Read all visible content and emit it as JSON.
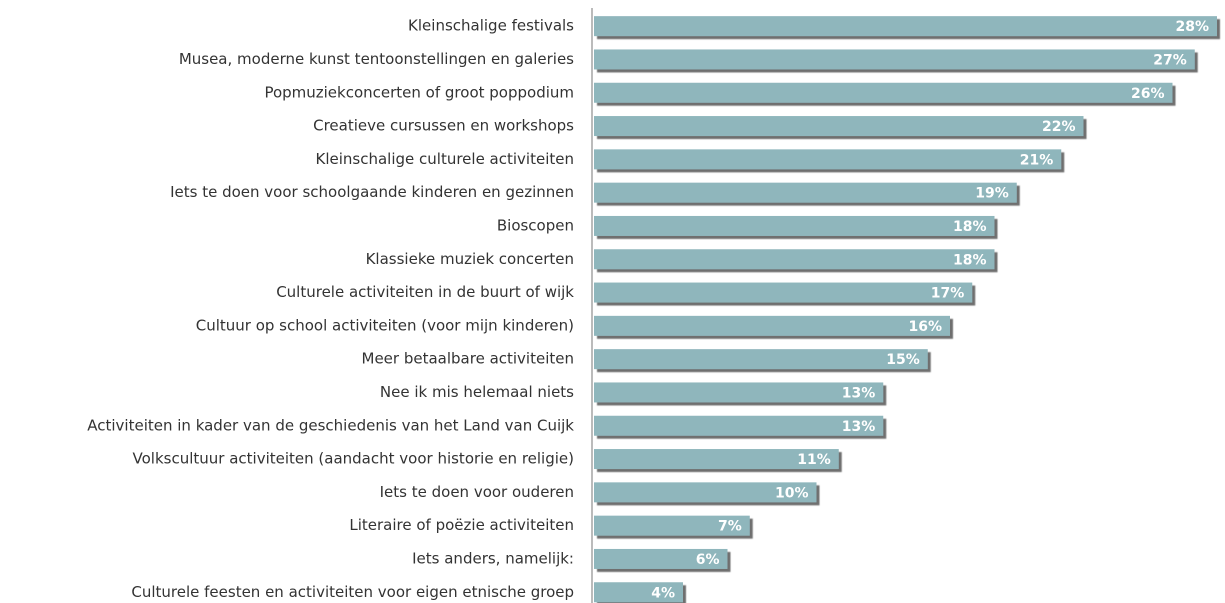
{
  "chart_data": {
    "type": "bar",
    "orientation": "horizontal",
    "categories": [
      "Kleinschalige festivals",
      "Musea, moderne kunst tentoonstellingen en galeries",
      "Popmuziekconcerten of groot poppodium",
      "Creatieve cursussen en workshops",
      "Kleinschalige culturele activiteiten",
      "Iets te doen voor schoolgaande kinderen en gezinnen",
      "Bioscopen",
      "Klassieke muziek concerten",
      "Culturele activiteiten in de buurt of wijk",
      "Cultuur op school activiteiten (voor mijn kinderen)",
      "Meer betaalbare activiteiten",
      "Nee ik mis helemaal niets",
      "Activiteiten in kader van de geschiedenis van het Land van Cuijk",
      "Volkscultuur activiteiten (aandacht voor historie en religie)",
      "Iets te doen voor ouderen",
      "Literaire of poëzie activiteiten",
      "Iets anders, namelijk:",
      "Culturele feesten en activiteiten voor eigen etnische groep"
    ],
    "values": [
      28,
      27,
      26,
      22,
      21,
      19,
      18,
      18,
      17,
      16,
      15,
      13,
      13,
      11,
      10,
      7,
      6,
      4
    ],
    "value_labels": [
      "28%",
      "27%",
      "26%",
      "22%",
      "21%",
      "19%",
      "18%",
      "18%",
      "17%",
      "16%",
      "15%",
      "13%",
      "13%",
      "11%",
      "10%",
      "7%",
      "6%",
      "4%"
    ],
    "color": "#8fb6bc",
    "xlim": [
      0,
      28
    ]
  }
}
